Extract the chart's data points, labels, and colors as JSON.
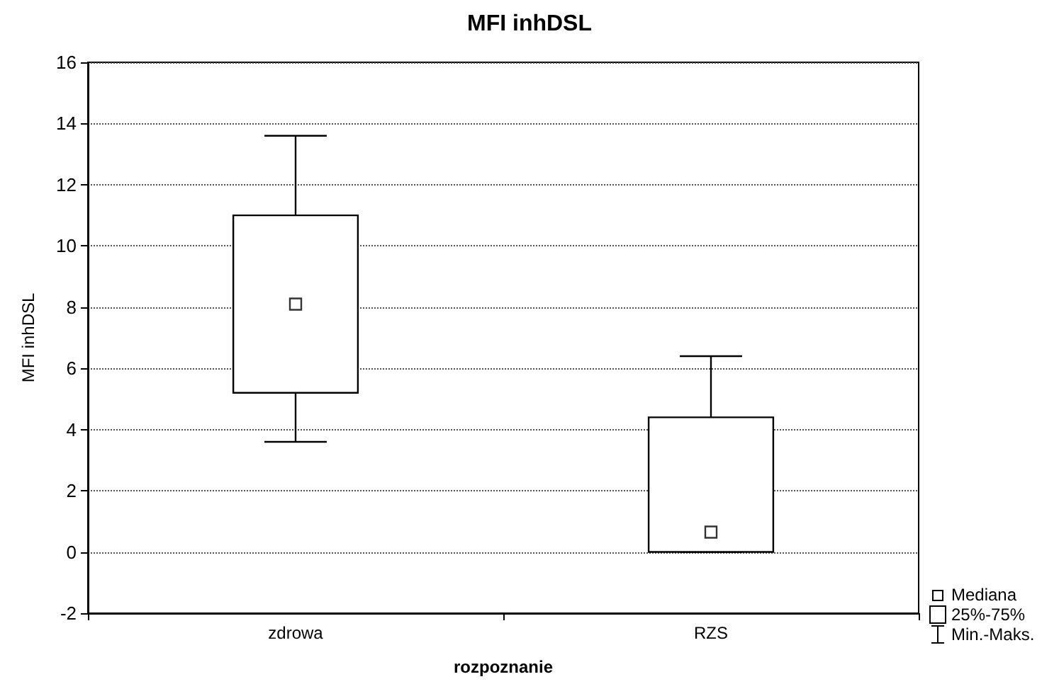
{
  "chart_data": {
    "type": "box",
    "title": "MFI inhDSL",
    "xlabel": "rozpoznanie",
    "ylabel": "MFI inhDSL",
    "categories": [
      "zdrowa",
      "RZS"
    ],
    "boxes": [
      {
        "low": 3.6,
        "q1": 5.2,
        "median": 8.1,
        "q3": 11.0,
        "high": 13.6
      },
      {
        "low": 0,
        "q1": 0,
        "median": 0.65,
        "q3": 4.4,
        "high": 6.4
      }
    ],
    "color": "#000000",
    "ylim": [
      -2,
      16
    ],
    "yticks": [
      -2,
      0,
      2,
      4,
      6,
      8,
      10,
      12,
      14,
      16
    ],
    "grid": "y",
    "marker": "square",
    "annotations": [
      "Mediana",
      "25%-75%",
      "Min.-Maks."
    ]
  }
}
